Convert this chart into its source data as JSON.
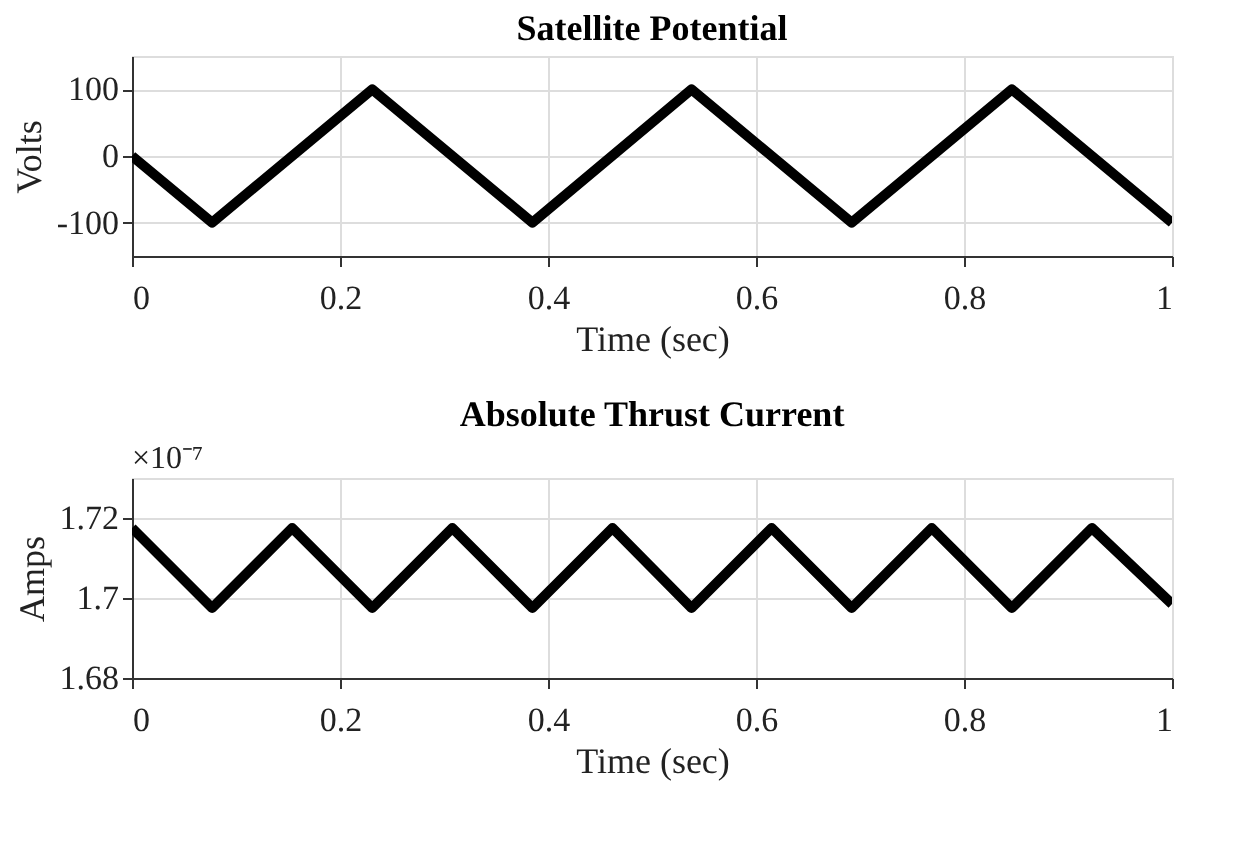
{
  "chart_data": [
    {
      "type": "line",
      "title": "Satellite Potential",
      "xlabel": "Time (sec)",
      "ylabel": "Volts",
      "x": [
        0,
        0.077,
        0.231,
        0.385,
        0.538,
        0.692,
        0.846,
        1.0
      ],
      "series": [
        {
          "color": "#000000",
          "values": [
            0,
            -100,
            100,
            -100,
            100,
            -100,
            100,
            -100
          ]
        }
      ],
      "xlim": [
        0,
        1
      ],
      "xticks": [
        0,
        0.2,
        0.4,
        0.6,
        0.8,
        1
      ],
      "ylim": [
        -150,
        150
      ],
      "yticks": [
        -100,
        0,
        100
      ],
      "grid": true,
      "marker": "none",
      "line_style": "solid"
    },
    {
      "type": "line",
      "title": "Absolute Thrust Current",
      "xlabel": "Time (sec)",
      "ylabel": "Amps",
      "annotations": [
        "×10⁻⁷"
      ],
      "x": [
        0,
        0.077,
        0.154,
        0.231,
        0.308,
        0.385,
        0.462,
        0.538,
        0.615,
        0.692,
        0.769,
        0.846,
        0.923,
        1.0
      ],
      "series": [
        {
          "color": "#000000",
          "values": [
            1.7175,
            1.6975,
            1.7175,
            1.6975,
            1.7175,
            1.6975,
            1.7175,
            1.6975,
            1.7175,
            1.6975,
            1.7175,
            1.6975,
            1.7175,
            1.6985
          ]
        }
      ],
      "xlim": [
        0,
        1
      ],
      "xticks": [
        0,
        0.2,
        0.4,
        0.6,
        0.8,
        1
      ],
      "ylim": [
        1.68,
        1.73
      ],
      "yticks": [
        1.68,
        1.7,
        1.72
      ],
      "grid": true,
      "marker": "none",
      "line_style": "solid"
    }
  ]
}
